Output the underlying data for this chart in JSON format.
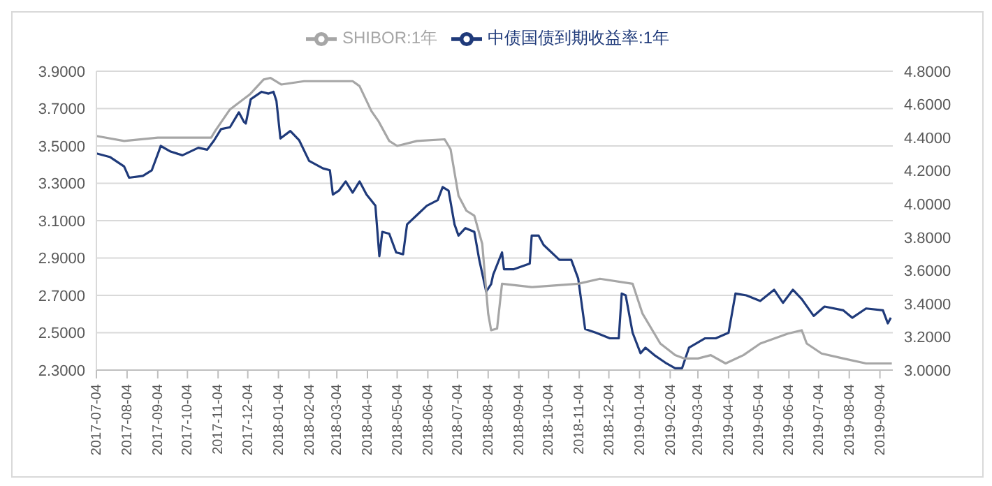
{
  "chart_data": {
    "type": "line",
    "legend": "top",
    "grid": "y",
    "marker": "none",
    "line_style": "solid",
    "xlim": [
      "2017-07-04",
      "2019-09-17"
    ],
    "xticks": [
      "2017-07-04",
      "2017-08-04",
      "2017-09-04",
      "2017-10-04",
      "2017-11-04",
      "2017-12-04",
      "2018-01-04",
      "2018-02-04",
      "2018-03-04",
      "2018-04-04",
      "2018-05-04",
      "2018-06-04",
      "2018-07-04",
      "2018-08-04",
      "2018-09-04",
      "2018-10-04",
      "2018-11-04",
      "2018-12-04",
      "2019-01-04",
      "2019-02-04",
      "2019-03-04",
      "2019-04-04",
      "2019-05-04",
      "2019-06-04",
      "2019-07-04",
      "2019-08-04",
      "2019-09-04"
    ],
    "ylim": [
      2.3,
      3.9
    ],
    "yticks": [
      {
        "value": 2.3,
        "label": "2.3000"
      },
      {
        "value": 2.5,
        "label": "2.5000"
      },
      {
        "value": 2.7,
        "label": "2.7000"
      },
      {
        "value": 2.9,
        "label": "2.9000"
      },
      {
        "value": 3.1,
        "label": "3.1000"
      },
      {
        "value": 3.3,
        "label": "3.3000"
      },
      {
        "value": 3.5,
        "label": "3.5000"
      },
      {
        "value": 3.7,
        "label": "3.7000"
      },
      {
        "value": 3.9,
        "label": "3.9000"
      }
    ],
    "y2lim": [
      3.0,
      4.8
    ],
    "y2ticks": [
      {
        "value": 3.0,
        "label": "3.0000"
      },
      {
        "value": 3.2,
        "label": "3.2000"
      },
      {
        "value": 3.4,
        "label": "3.4000"
      },
      {
        "value": 3.6,
        "label": "3.6000"
      },
      {
        "value": 3.8,
        "label": "3.8000"
      },
      {
        "value": 4.0,
        "label": "4.0000"
      },
      {
        "value": 4.2,
        "label": "4.2000"
      },
      {
        "value": 4.4,
        "label": "4.4000"
      },
      {
        "value": 4.6,
        "label": "4.6000"
      },
      {
        "value": 4.8,
        "label": "4.8000"
      }
    ],
    "series": [
      {
        "name": "中债国债到期收益率:1年",
        "color": "#1f3a7a",
        "axis": "y",
        "x": [
          "2017-07-04",
          "2017-07-18",
          "2017-08-01",
          "2017-08-06",
          "2017-08-20",
          "2017-08-29",
          "2017-09-05",
          "2017-09-07",
          "2017-09-17",
          "2017-09-29",
          "2017-10-15",
          "2017-10-24",
          "2017-10-31",
          "2017-11-07",
          "2017-11-16",
          "2017-11-25",
          "2017-11-30",
          "2017-12-02",
          "2017-12-07",
          "2017-12-18",
          "2017-12-25",
          "2017-12-30",
          "2018-01-02",
          "2018-01-06",
          "2018-01-16",
          "2018-01-25",
          "2018-02-04",
          "2018-02-18",
          "2018-02-25",
          "2018-02-28",
          "2018-03-06",
          "2018-03-13",
          "2018-03-20",
          "2018-03-27",
          "2018-04-03",
          "2018-04-12",
          "2018-04-16",
          "2018-04-19",
          "2018-04-26",
          "2018-05-03",
          "2018-05-10",
          "2018-05-14",
          "2018-05-24",
          "2018-06-03",
          "2018-06-14",
          "2018-06-19",
          "2018-06-25",
          "2018-07-01",
          "2018-07-05",
          "2018-07-12",
          "2018-07-21",
          "2018-07-26",
          "2018-08-02",
          "2018-08-07",
          "2018-08-09",
          "2018-08-18",
          "2018-08-20",
          "2018-08-30",
          "2018-09-15",
          "2018-09-17",
          "2018-09-24",
          "2018-09-29",
          "2018-10-15",
          "2018-10-27",
          "2018-11-03",
          "2018-11-10",
          "2018-11-21",
          "2018-12-05",
          "2018-12-14",
          "2018-12-17",
          "2018-12-21",
          "2018-12-28",
          "2019-01-05",
          "2019-01-10",
          "2019-01-19",
          "2019-01-30",
          "2019-02-09",
          "2019-02-16",
          "2019-02-23",
          "2019-03-11",
          "2019-03-22",
          "2019-04-04",
          "2019-04-11",
          "2019-04-22",
          "2019-05-06",
          "2019-05-20",
          "2019-05-29",
          "2019-06-08",
          "2019-06-17",
          "2019-06-29",
          "2019-07-10",
          "2019-07-29",
          "2019-08-07",
          "2019-08-21",
          "2019-09-07",
          "2019-09-12",
          "2019-09-15"
        ],
        "values": [
          3.46,
          3.44,
          3.39,
          3.33,
          3.34,
          3.37,
          3.47,
          3.5,
          3.47,
          3.45,
          3.49,
          3.48,
          3.53,
          3.59,
          3.6,
          3.68,
          3.63,
          3.62,
          3.75,
          3.79,
          3.78,
          3.79,
          3.74,
          3.54,
          3.58,
          3.53,
          3.42,
          3.38,
          3.37,
          3.24,
          3.26,
          3.31,
          3.25,
          3.31,
          3.24,
          3.18,
          2.91,
          3.04,
          3.03,
          2.93,
          2.92,
          3.08,
          3.13,
          3.18,
          3.21,
          3.28,
          3.26,
          3.08,
          3.02,
          3.06,
          3.04,
          2.89,
          2.72,
          2.76,
          2.81,
          2.93,
          2.84,
          2.84,
          2.87,
          3.02,
          3.02,
          2.97,
          2.89,
          2.89,
          2.79,
          2.52,
          2.5,
          2.47,
          2.47,
          2.71,
          2.7,
          2.5,
          2.39,
          2.42,
          2.38,
          2.34,
          2.31,
          2.31,
          2.42,
          2.47,
          2.47,
          2.5,
          2.71,
          2.7,
          2.67,
          2.73,
          2.66,
          2.73,
          2.68,
          2.59,
          2.64,
          2.62,
          2.58,
          2.63,
          2.62,
          2.55,
          2.58
        ]
      },
      {
        "name": "SHIBOR:1年",
        "color": "#a6a6a6",
        "axis": "y2",
        "x": [
          "2017-07-04",
          "2017-08-01",
          "2017-09-04",
          "2017-10-28",
          "2017-11-01",
          "2017-11-16",
          "2017-12-06",
          "2017-12-20",
          "2017-12-27",
          "2018-01-07",
          "2018-01-30",
          "2018-03-20",
          "2018-03-27",
          "2018-04-08",
          "2018-04-15",
          "2018-04-26",
          "2018-05-04",
          "2018-05-24",
          "2018-06-21",
          "2018-06-27",
          "2018-07-05",
          "2018-07-13",
          "2018-07-21",
          "2018-07-29",
          "2018-08-04",
          "2018-08-07",
          "2018-08-13",
          "2018-08-18",
          "2018-09-17",
          "2018-11-03",
          "2018-11-25",
          "2018-12-28",
          "2019-01-07",
          "2019-01-25",
          "2019-02-09",
          "2019-02-18",
          "2019-03-04",
          "2019-03-17",
          "2019-04-01",
          "2019-04-19",
          "2019-05-06",
          "2019-06-03",
          "2019-06-17",
          "2019-06-22",
          "2019-07-07",
          "2019-07-29",
          "2019-08-21",
          "2019-09-16"
        ],
        "values": [
          4.41,
          4.38,
          4.4,
          4.4,
          4.44,
          4.57,
          4.66,
          4.75,
          4.76,
          4.72,
          4.74,
          4.74,
          4.71,
          4.56,
          4.5,
          4.38,
          4.35,
          4.38,
          4.39,
          4.33,
          4.05,
          3.96,
          3.93,
          3.76,
          3.34,
          3.24,
          3.25,
          3.52,
          3.5,
          3.52,
          3.55,
          3.52,
          3.34,
          3.16,
          3.09,
          3.07,
          3.07,
          3.09,
          3.04,
          3.09,
          3.16,
          3.22,
          3.24,
          3.16,
          3.1,
          3.07,
          3.04,
          3.04
        ]
      }
    ]
  }
}
